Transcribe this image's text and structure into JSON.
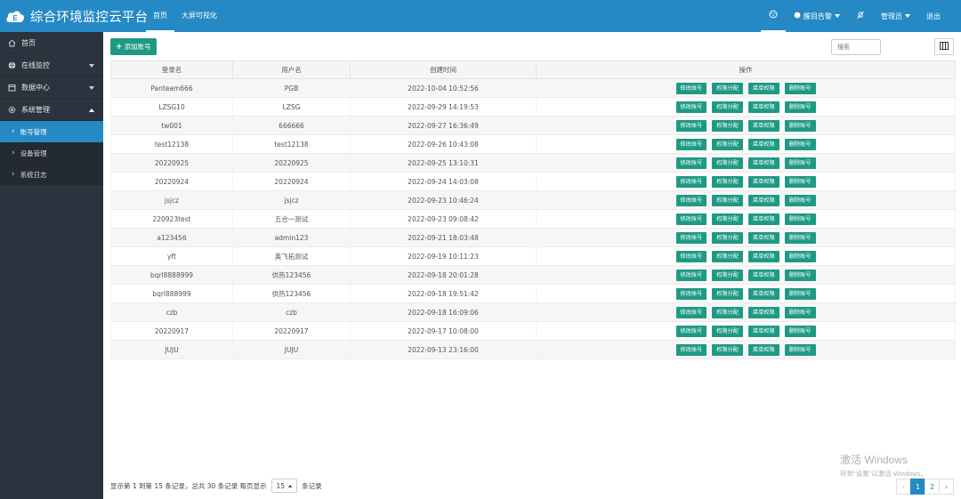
{
  "app": {
    "title": "综合环境监控云平台"
  },
  "topnav": [
    {
      "label": "首页"
    },
    {
      "label": "大屏可视化"
    }
  ],
  "topright": {
    "alarm_label": "醒目告警",
    "user_label": "管理员",
    "logout_label": "退出"
  },
  "sidebar": {
    "items": [
      {
        "label": "首页"
      },
      {
        "label": "在线监控"
      },
      {
        "label": "数据中心"
      },
      {
        "label": "系统管理"
      }
    ],
    "subitems": [
      {
        "label": "账号管理"
      },
      {
        "label": "设备管理"
      },
      {
        "label": "系统日志"
      }
    ]
  },
  "toolbar": {
    "add_label": "添加账号",
    "search_placeholder": "搜索"
  },
  "table": {
    "headers": [
      "登录名",
      "用户名",
      "创建时间",
      "操作"
    ],
    "actions": [
      "修改账号",
      "权限分配",
      "菜单权限",
      "删除账号"
    ],
    "rows": [
      {
        "login": "Panteam666",
        "user": "PGB",
        "created": "2022-10-04 10:52:56"
      },
      {
        "login": "LZSG10",
        "user": "LZSG",
        "created": "2022-09-29 14:19:53"
      },
      {
        "login": "tw001",
        "user": "666666",
        "created": "2022-09-27 16:36:49"
      },
      {
        "login": "test12138",
        "user": "test12138",
        "created": "2022-09-26 10:43:08"
      },
      {
        "login": "20220925",
        "user": "20220925",
        "created": "2022-09-25 13:10:31"
      },
      {
        "login": "20220924",
        "user": "20220924",
        "created": "2022-09-24 14:03:08"
      },
      {
        "login": "jsjcz",
        "user": "jsjcz",
        "created": "2022-09-23 10:46:24"
      },
      {
        "login": "220923test",
        "user": "五合一测试",
        "created": "2022-09-23 09:08:42"
      },
      {
        "login": "a123456",
        "user": "admin123",
        "created": "2022-09-21 18:03:48"
      },
      {
        "login": "yft",
        "user": "英飞拓测试",
        "created": "2022-09-19 10:11:23"
      },
      {
        "login": "bqrl8888999",
        "user": "供热123456",
        "created": "2022-09-18 20:01:28"
      },
      {
        "login": "bqrl888999",
        "user": "供热123456",
        "created": "2022-09-18 19:51:42"
      },
      {
        "login": "czb",
        "user": "czb",
        "created": "2022-09-18 16:09:06"
      },
      {
        "login": "20220917",
        "user": "20220917",
        "created": "2022-09-17 10:08:00"
      },
      {
        "login": "JUJU",
        "user": "JUJU",
        "created": "2022-09-13 23:16:00"
      }
    ]
  },
  "footer": {
    "summary": "显示第 1 到第 15 条记录，总共 30 条记录 每页显示",
    "page_size": "15",
    "suffix": "条记录"
  },
  "pagination": {
    "prev": "‹",
    "pages": [
      "1",
      "2"
    ],
    "next": "›"
  },
  "watermark": {
    "line1": "激活 Windows",
    "line2": "转到\"设置\"以激活 Windows。"
  },
  "colors": {
    "topbar": "#2489c5",
    "sidebar": "#2b333e",
    "accent": "#1e9a84"
  }
}
